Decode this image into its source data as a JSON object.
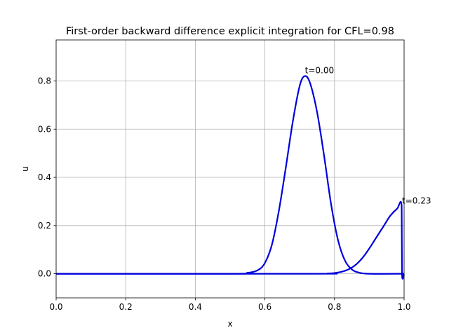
{
  "chart_data": {
    "type": "line",
    "title": "First-order backward difference explicit integration for  CFL=0.98",
    "xlabel": "x",
    "ylabel": "u",
    "xlim": [
      0.0,
      1.0
    ],
    "ylim": [
      -0.1,
      0.97
    ],
    "xticks": [
      0.0,
      0.2,
      0.4,
      0.6,
      0.8,
      1.0
    ],
    "xtick_labels": [
      "0.0",
      "0.2",
      "0.4",
      "0.6",
      "0.8",
      "1.0"
    ],
    "yticks": [
      0.0,
      0.2,
      0.4,
      0.6,
      0.8
    ],
    "ytick_labels": [
      "0.0",
      "0.2",
      "0.4",
      "0.6",
      "0.8"
    ],
    "grid": true,
    "line_color": "#0000dd",
    "series": [
      {
        "x": [
          0.0,
          0.5,
          0.55,
          0.58,
          0.6,
          0.62,
          0.64,
          0.66,
          0.68,
          0.7,
          0.715,
          0.73,
          0.75,
          0.77,
          0.79,
          0.81,
          0.83,
          0.85,
          0.87,
          0.9,
          1.0
        ],
        "y": [
          0.0,
          0.0,
          0.004,
          0.015,
          0.045,
          0.12,
          0.26,
          0.44,
          0.63,
          0.78,
          0.82,
          0.79,
          0.67,
          0.49,
          0.29,
          0.14,
          0.055,
          0.018,
          0.005,
          0.0,
          0.0
        ]
      },
      {
        "x": [
          0.0,
          0.74,
          0.78,
          0.8,
          0.82,
          0.84,
          0.86,
          0.88,
          0.9,
          0.92,
          0.94,
          0.96,
          0.98,
          0.993,
          0.994,
          1.0
        ],
        "y": [
          0.0,
          0.0,
          0.001,
          0.003,
          0.008,
          0.018,
          0.036,
          0.065,
          0.105,
          0.15,
          0.195,
          0.24,
          0.27,
          0.28,
          0.0,
          0.0
        ]
      }
    ],
    "annotations": [
      {
        "text": "t=0.00",
        "x": 0.715,
        "y": 0.82
      },
      {
        "text": "t=0.23",
        "x": 0.994,
        "y": 0.28
      }
    ]
  }
}
